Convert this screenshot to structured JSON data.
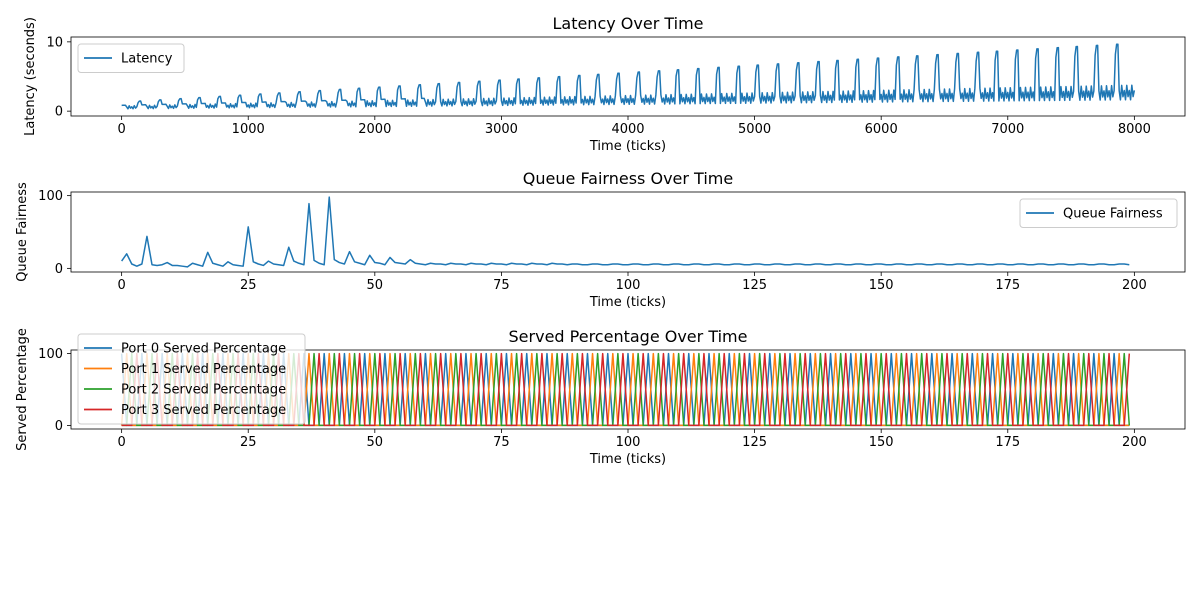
{
  "chart_data": [
    {
      "type": "line",
      "title": "Latency Over Time",
      "xlabel": "Time (ticks)",
      "ylabel": "Latency (seconds)",
      "xlim": [
        -400,
        8400
      ],
      "ylim": [
        -0.7,
        10.7
      ],
      "xticks": [
        0,
        1000,
        2000,
        3000,
        4000,
        5000,
        6000,
        7000,
        8000
      ],
      "yticks": [
        0,
        10
      ],
      "legend": "upper left",
      "grid": false,
      "series_pattern": {
        "description": "sawtooth: baseline oscillation rising from about 0.6 to 3, with a spike every ~158 ticks growing from about 1.3 to 9.8",
        "cycle_ticks": 157.5,
        "baseline_start": 0.6,
        "baseline_end": 3.0,
        "spike_start": 1.3,
        "spike_end": 9.8
      },
      "series": [
        {
          "name": "Latency",
          "color": "#1f77b4"
        }
      ]
    },
    {
      "type": "line",
      "title": "Queue Fairness Over Time",
      "xlabel": "Time (ticks)",
      "ylabel": "Queue Fairness",
      "xlim": [
        -10,
        210
      ],
      "ylim": [
        -5,
        105
      ],
      "xticks": [
        0,
        25,
        50,
        75,
        100,
        125,
        150,
        175,
        200
      ],
      "yticks": [
        0,
        100
      ],
      "legend": "upper right",
      "grid": false,
      "series": [
        {
          "name": "Queue Fairness",
          "color": "#1f77b4",
          "x_start": 0,
          "x_step": 1,
          "values": [
            10,
            20,
            6,
            3,
            6,
            44,
            5,
            4,
            5,
            8,
            4,
            4,
            3,
            2,
            7,
            5,
            3,
            22,
            7,
            5,
            3,
            9,
            5,
            4,
            3,
            57,
            9,
            6,
            4,
            10,
            6,
            5,
            4,
            29,
            10,
            7,
            5,
            89,
            11,
            7,
            5,
            98,
            12,
            8,
            6,
            23,
            9,
            7,
            5,
            18,
            8,
            7,
            5,
            15,
            8,
            7,
            6,
            12,
            7,
            6,
            5,
            7,
            6,
            6,
            5,
            7,
            6,
            6,
            5,
            7,
            6,
            6,
            5,
            7,
            6,
            6,
            5,
            7,
            6,
            6,
            5,
            7,
            6,
            6,
            5,
            7,
            6,
            6,
            5,
            6,
            6,
            5,
            5,
            6,
            6,
            5,
            5,
            6,
            6,
            5,
            5,
            6,
            6,
            5,
            5,
            6,
            6,
            5,
            5,
            6,
            6,
            5,
            5,
            6,
            6,
            5,
            5,
            6,
            6,
            5,
            5,
            6,
            6,
            5,
            5,
            6,
            6,
            5,
            5,
            6,
            6,
            5,
            5,
            6,
            6,
            5,
            5,
            6,
            6,
            5,
            5,
            6,
            6,
            5,
            5,
            6,
            6,
            5,
            5,
            6,
            6,
            5,
            5,
            6,
            6,
            5,
            5,
            6,
            6,
            5,
            5,
            6,
            6,
            5,
            5,
            6,
            6,
            5,
            5,
            6,
            6,
            5,
            5,
            6,
            6,
            5,
            5,
            6,
            6,
            5,
            5,
            6,
            6,
            5,
            5,
            6,
            6,
            5,
            5,
            6,
            6,
            5,
            5,
            6,
            6,
            5,
            5,
            6,
            6,
            5
          ]
        }
      ]
    },
    {
      "type": "line",
      "title": "Served Percentage Over Time",
      "xlabel": "Time (ticks)",
      "ylabel": "Served Percentage",
      "xlim": [
        -10,
        210
      ],
      "ylim": [
        -5,
        105
      ],
      "xticks": [
        0,
        25,
        50,
        75,
        100,
        125,
        150,
        175,
        200
      ],
      "yticks": [
        0,
        100
      ],
      "legend": "upper left",
      "grid": false,
      "series_pattern": {
        "description": "round-robin: at each tick one port is served 100% and the others 0%, cycling Port 0, 1, 2, 3",
        "x_start": 0,
        "x_end": 199,
        "x_step": 1,
        "cycle_length": 4
      },
      "series": [
        {
          "name": "Port 0 Served Percentage",
          "color": "#1f77b4",
          "phase": 0
        },
        {
          "name": "Port 1 Served Percentage",
          "color": "#ff7f0e",
          "phase": 1
        },
        {
          "name": "Port 2 Served Percentage",
          "color": "#2ca02c",
          "phase": 2
        },
        {
          "name": "Port 3 Served Percentage",
          "color": "#d62728",
          "phase": 3
        }
      ]
    }
  ]
}
